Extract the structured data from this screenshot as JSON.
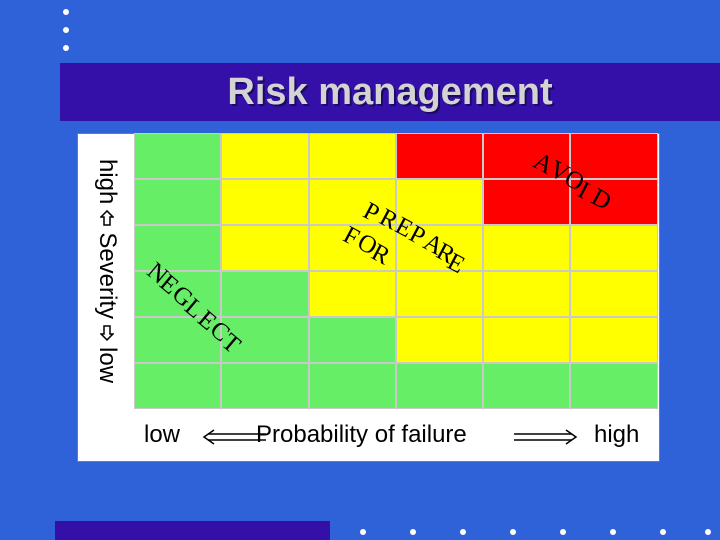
{
  "slide": {
    "title": "Risk management",
    "y_axis": {
      "high": "high",
      "label": "Severity",
      "low": "low"
    },
    "x_axis": {
      "low": "low",
      "label": "Probability of failure",
      "high": "high"
    },
    "zones": {
      "avoid": "AVOID",
      "prepare_for": "PREPARE FOR",
      "neglect": "NEGLECT"
    },
    "matrix": {
      "colors": {
        "green": "#66ee66",
        "yellow": "#ffff00",
        "red": "#ff0000"
      },
      "rows_top_to_bottom": [
        [
          "green",
          "yellow",
          "yellow",
          "red",
          "red",
          "red"
        ],
        [
          "green",
          "yellow",
          "yellow",
          "yellow",
          "red",
          "red"
        ],
        [
          "green",
          "yellow",
          "yellow",
          "yellow",
          "yellow",
          "yellow"
        ],
        [
          "green",
          "green",
          "yellow",
          "yellow",
          "yellow",
          "yellow"
        ],
        [
          "green",
          "green",
          "green",
          "yellow",
          "yellow",
          "yellow"
        ],
        [
          "green",
          "green",
          "green",
          "green",
          "green",
          "green"
        ]
      ]
    }
  }
}
